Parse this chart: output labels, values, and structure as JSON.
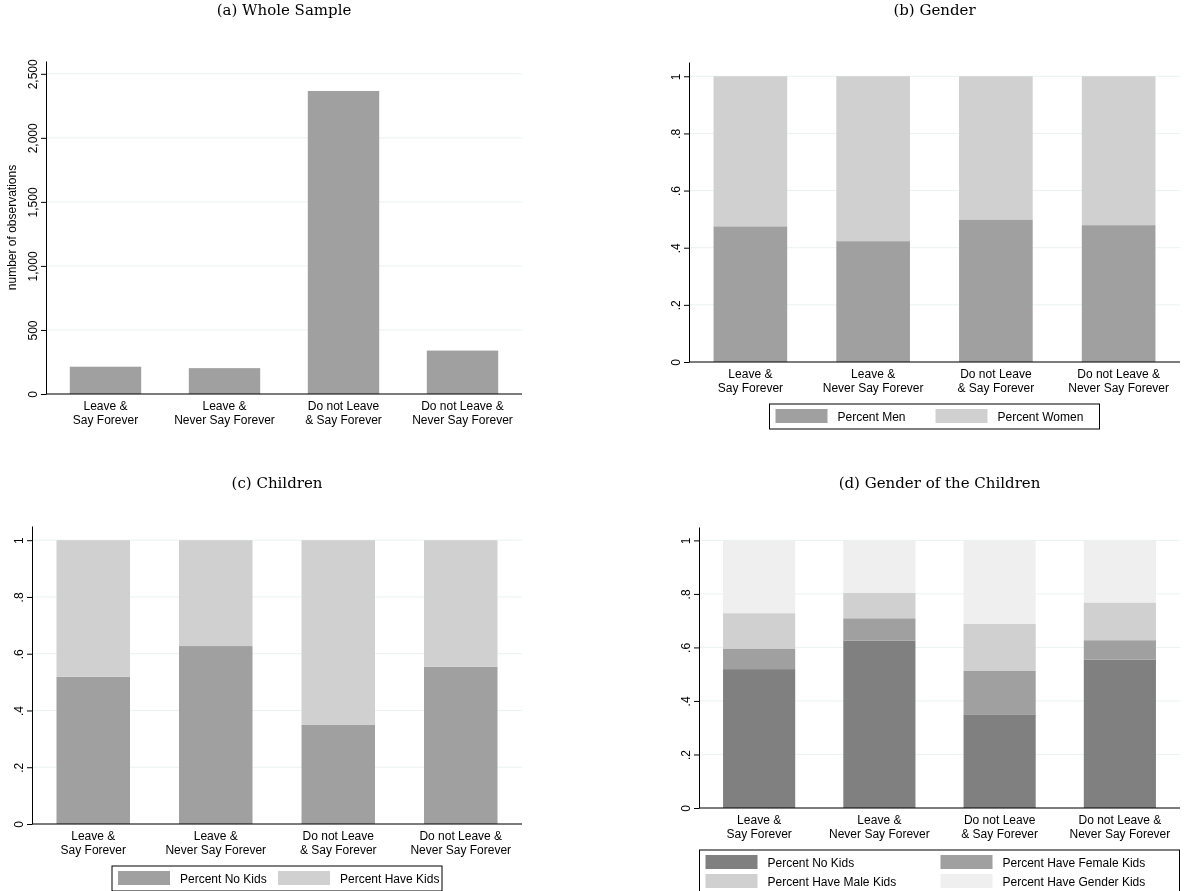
{
  "chart_data": [
    {
      "type": "bar",
      "title": "(a) Whole Sample",
      "ylabel": "number of observations",
      "categories": [
        "Leave &\nSay Forever",
        "Leave &\nNever Say Forever",
        "Do not Leave\n& Say Forever",
        "Do not Leave &\nNever Say Forever"
      ],
      "values": [
        213,
        202,
        2366,
        339
      ],
      "color": "#a0a0a0",
      "ylim": [
        0,
        2600
      ],
      "yticks": [
        0,
        500,
        {
          "value": 1000,
          "label": "1,000"
        },
        {
          "value": 1500,
          "label": "1,500"
        },
        {
          "value": 2000,
          "label": "2,000"
        },
        {
          "value": 2500,
          "label": "2,500"
        }
      ],
      "grid": "y"
    },
    {
      "type": "bar",
      "title": "(b) Gender",
      "categories": [
        "Leave &\nSay Forever",
        "Leave &\nNever Say Forever",
        "Do not Leave\n& Say Forever",
        "Do not Leave &\nNever Say Forever"
      ],
      "stacked": true,
      "series": [
        {
          "name": "Percent Men",
          "color": "#a0a0a0",
          "values": [
            0.475,
            0.423,
            0.499,
            0.479
          ]
        },
        {
          "name": "Percent Women",
          "color": "#d0d0d0",
          "values": [
            0.525,
            0.577,
            0.501,
            0.521
          ]
        }
      ],
      "ylim": [
        0,
        1.05
      ],
      "yticks": [
        0,
        {
          "value": 0.2,
          "label": ".2"
        },
        {
          "value": 0.4,
          "label": ".4"
        },
        {
          "value": 0.6,
          "label": ".6"
        },
        {
          "value": 0.8,
          "label": ".8"
        },
        1
      ],
      "grid": "y",
      "legend": "bottom"
    },
    {
      "type": "bar",
      "title": "(c) Children",
      "categories": [
        "Leave &\nSay Forever",
        "Leave &\nNever Say Forever",
        "Do not Leave\n& Say Forever",
        "Do not Leave &\nNever Say Forever"
      ],
      "stacked": true,
      "series": [
        {
          "name": "Percent No Kids",
          "color": "#a0a0a0",
          "values": [
            0.519,
            0.627,
            0.349,
            0.554
          ]
        },
        {
          "name": "Percent Have Kids",
          "color": "#d0d0d0",
          "values": [
            0.481,
            0.373,
            0.651,
            0.446
          ]
        }
      ],
      "ylim": [
        0,
        1.05
      ],
      "yticks": [
        0,
        {
          "value": 0.2,
          "label": ".2"
        },
        {
          "value": 0.4,
          "label": ".4"
        },
        {
          "value": 0.6,
          "label": ".6"
        },
        {
          "value": 0.8,
          "label": ".8"
        },
        1
      ],
      "grid": "y",
      "legend": "bottom"
    },
    {
      "type": "bar",
      "title": "(d) Gender of the Children",
      "categories": [
        "Leave &\nSay Forever",
        "Leave &\nNever Say Forever",
        "Do not Leave\n& Say Forever",
        "Do not Leave &\nNever Say Forever"
      ],
      "stacked": true,
      "series": [
        {
          "name": "Percent No Kids",
          "color": "#808080",
          "values": [
            0.519,
            0.626,
            0.35,
            0.555
          ]
        },
        {
          "name": "Percent Have Female Kids",
          "color": "#a0a0a0",
          "values": [
            0.077,
            0.083,
            0.162,
            0.072
          ]
        },
        {
          "name": "Percent Have Male Kids",
          "color": "#d0d0d0",
          "values": [
            0.132,
            0.095,
            0.176,
            0.141
          ]
        },
        {
          "name": "Percent Have Gender Kids",
          "color": "#efefef",
          "values": [
            0.272,
            0.196,
            0.312,
            0.232
          ]
        }
      ],
      "ylim": [
        0,
        1.05
      ],
      "yticks": [
        0,
        {
          "value": 0.2,
          "label": ".2"
        },
        {
          "value": 0.4,
          "label": ".4"
        },
        {
          "value": 0.6,
          "label": ".6"
        },
        {
          "value": 0.8,
          "label": ".8"
        },
        1
      ],
      "grid": "y",
      "legend": "bottom"
    }
  ]
}
